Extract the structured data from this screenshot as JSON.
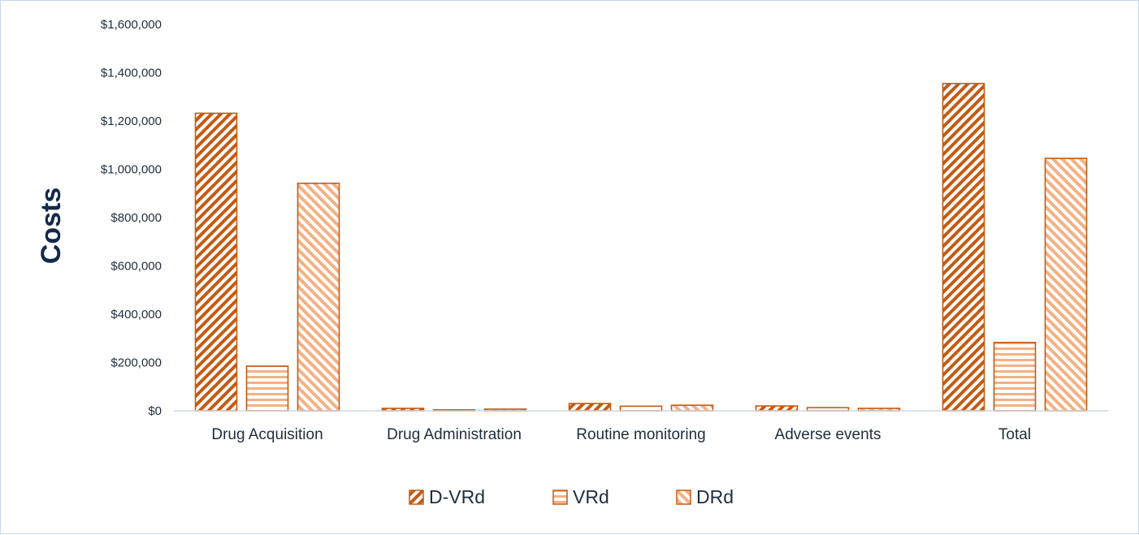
{
  "chart_data": {
    "type": "bar",
    "ylabel": "Costs",
    "ylim": [
      0,
      1600000
    ],
    "y_ticks": [
      "$0",
      "$200,000",
      "$400,000",
      "$600,000",
      "$800,000",
      "$1,000,000",
      "$1,200,000",
      "$1,400,000",
      "$1,600,000"
    ],
    "categories": [
      "Drug Acquisition",
      "Drug Administration",
      "Routine monitoring",
      "Adverse events",
      "Total"
    ],
    "series": [
      {
        "name": "D-VRd",
        "pattern": "diagonal-up",
        "values": [
          1232000,
          10000,
          30000,
          20000,
          1355000
        ]
      },
      {
        "name": "VRd",
        "pattern": "horizontal",
        "values": [
          185000,
          4000,
          19000,
          13000,
          283000
        ]
      },
      {
        "name": "DRd",
        "pattern": "diagonal-down",
        "values": [
          942000,
          7000,
          23000,
          10000,
          1045000
        ]
      }
    ],
    "grid": false,
    "legend_position": "bottom",
    "colors": {
      "stroke": "#c55a11",
      "hatch_dark": "#c55a11",
      "hatch_light": "#f4b183",
      "axis": "#d0d8e0"
    }
  }
}
